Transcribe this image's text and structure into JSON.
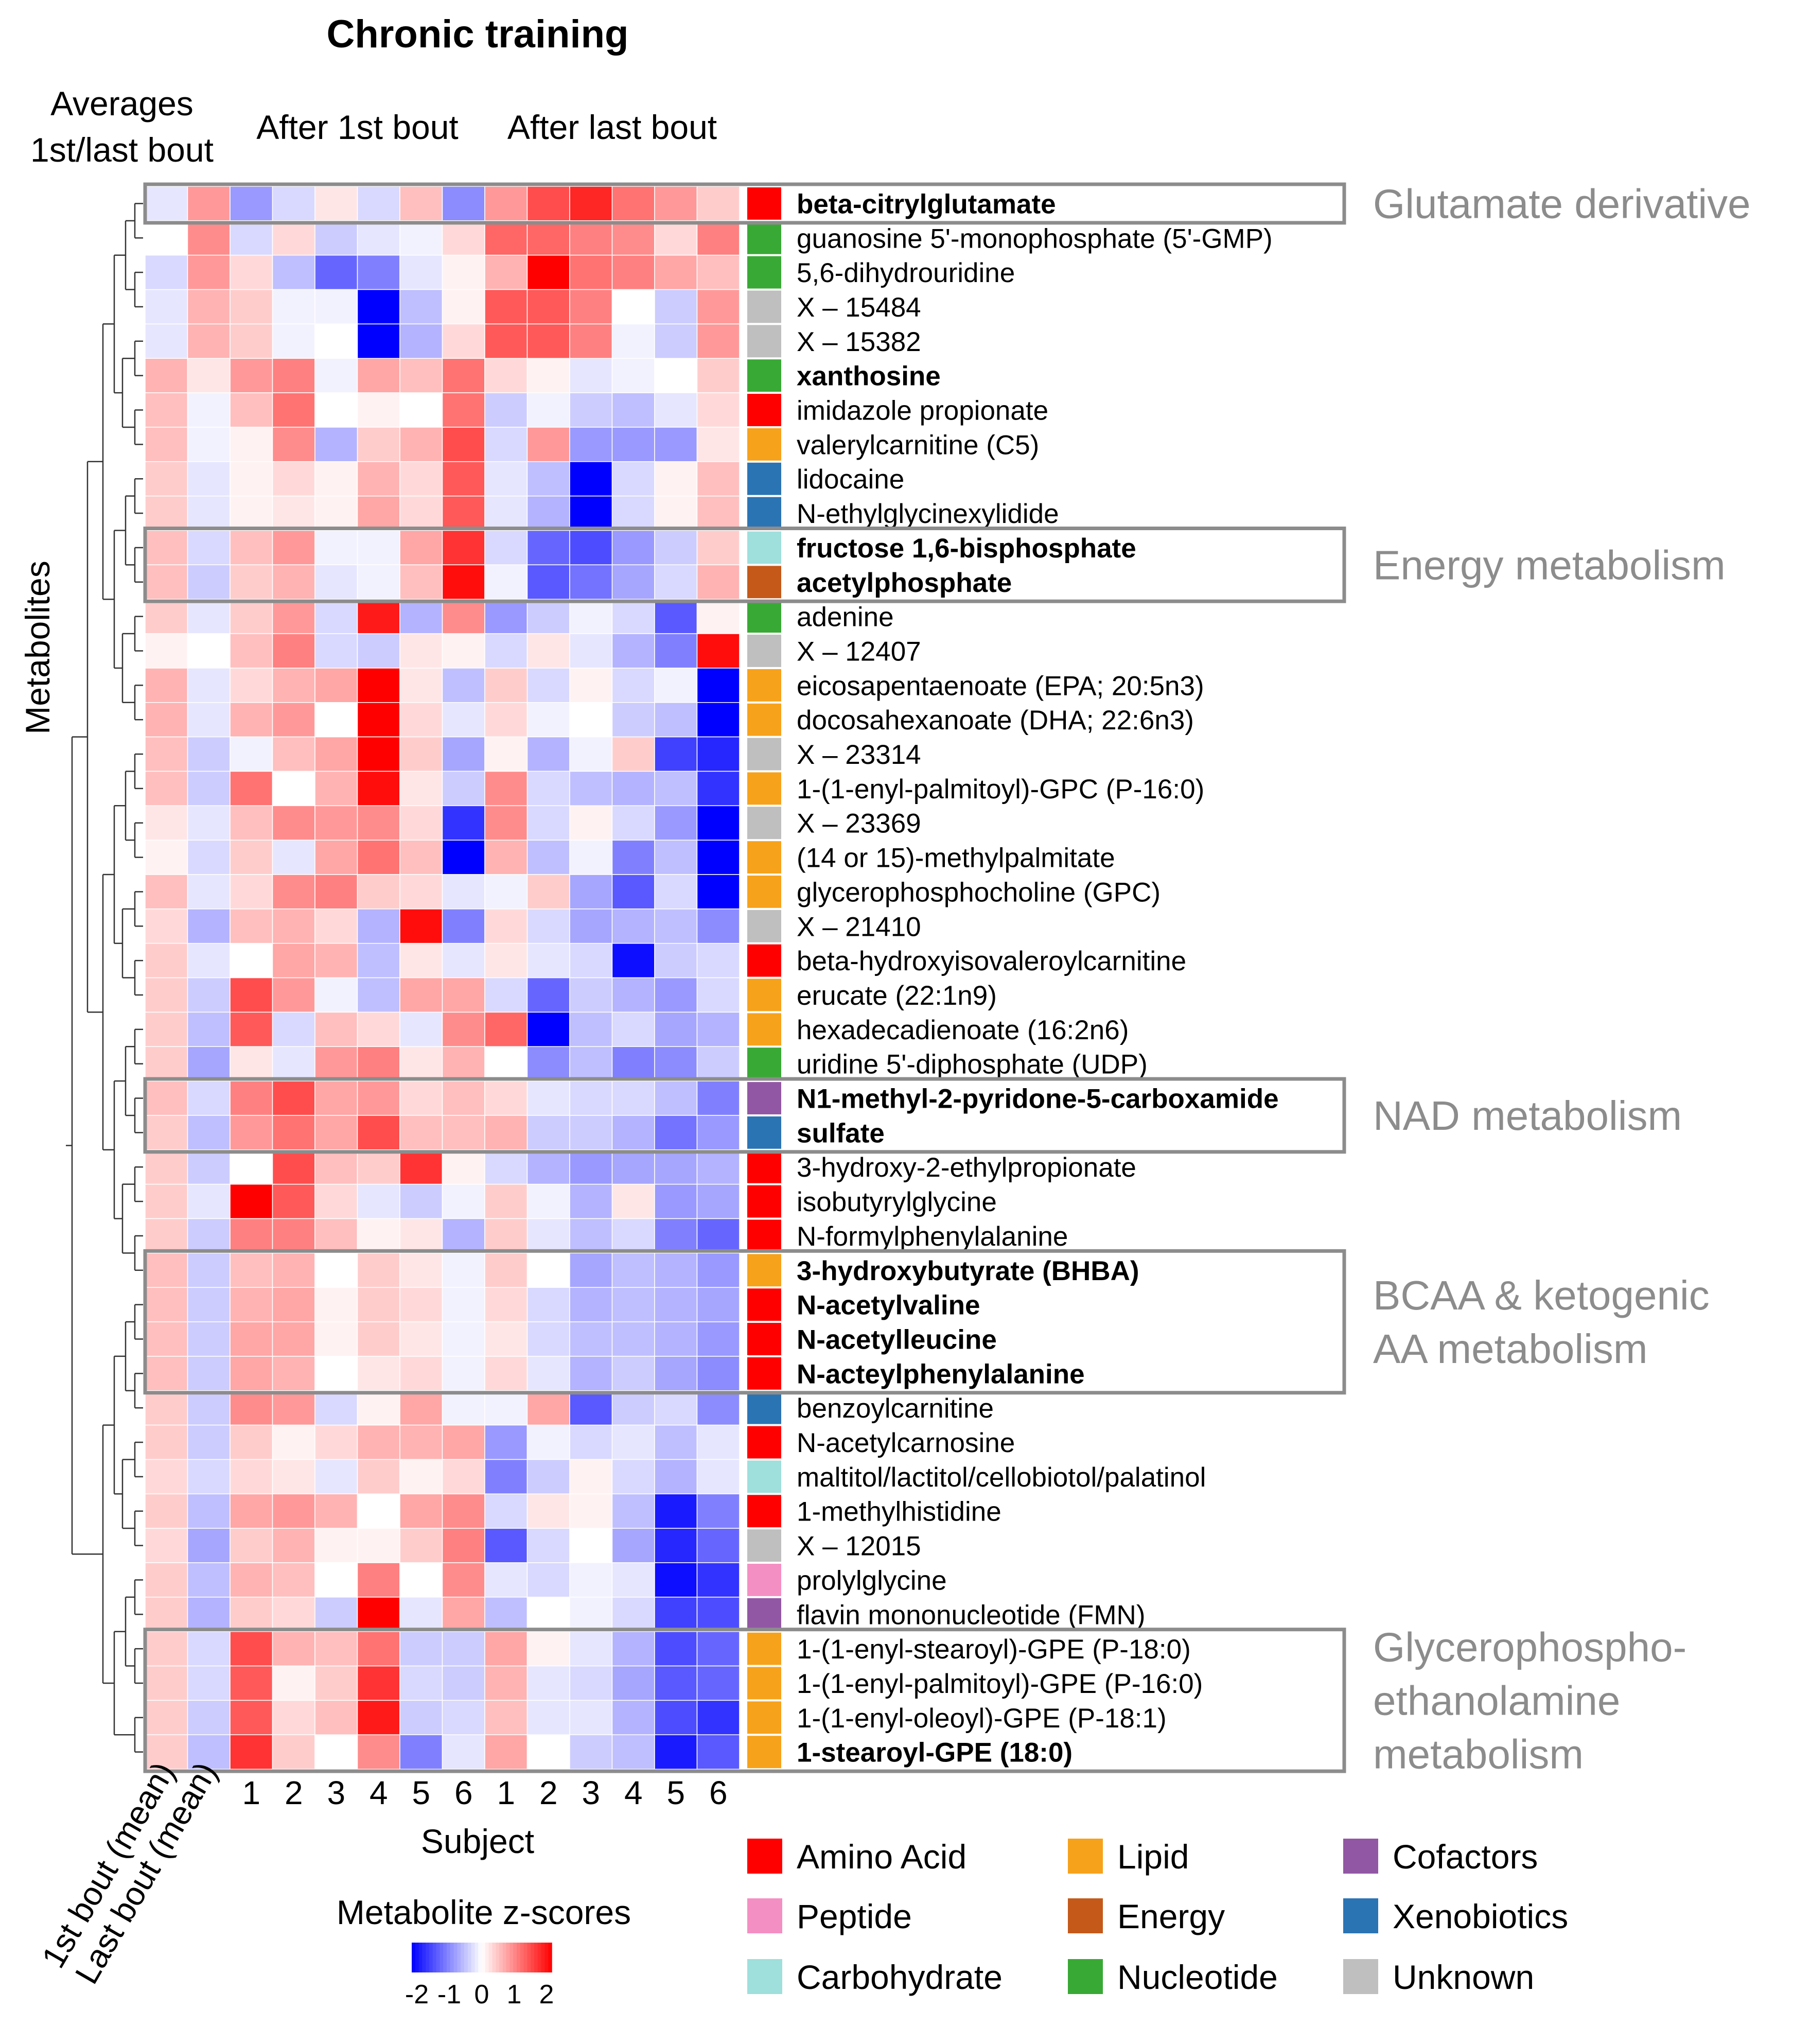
{
  "chart_data": {
    "type": "heatmap",
    "title": "Chronic training",
    "column_groups": [
      "Averages\n1st/last bout",
      "After 1st bout",
      "After last bout"
    ],
    "columns": [
      "1st bout (mean)",
      "Last bout (mean)",
      "1",
      "2",
      "3",
      "4",
      "5",
      "6",
      "1",
      "2",
      "3",
      "4",
      "5",
      "6"
    ],
    "xlabel": "Subject",
    "ylabel": "Metabolites",
    "colorbar": {
      "title": "Metabolite z-scores",
      "ticks": [
        "-2",
        "-1",
        "0",
        "1",
        "2"
      ],
      "range": [
        -2,
        2
      ],
      "low_color": "#0000ff",
      "mid_color": "#ffffff",
      "high_color": "#ff0000"
    },
    "class_colors": {
      "Amino Acid": "#ff0000",
      "Peptide": "#f48fc3",
      "Carbohydrate": "#9fdfdc",
      "Lipid": "#f7a21b",
      "Energy": "#c4591a",
      "Nucleotide": "#39a935",
      "Cofactors": "#9257a4",
      "Xenobiotics": "#2b74b4",
      "Unknown": "#bfbfbf"
    },
    "legend": [
      {
        "label": "Amino Acid",
        "color": "#ff0000"
      },
      {
        "label": "Peptide",
        "color": "#f48fc3"
      },
      {
        "label": "Carbohydrate",
        "color": "#9fdfdc"
      },
      {
        "label": "Lipid",
        "color": "#f7a21b"
      },
      {
        "label": "Energy",
        "color": "#c4591a"
      },
      {
        "label": "Nucleotide",
        "color": "#39a935"
      },
      {
        "label": "Cofactors",
        "color": "#9257a4"
      },
      {
        "label": "Xenobiotics",
        "color": "#2b74b4"
      },
      {
        "label": "Unknown",
        "color": "#bfbfbf"
      }
    ],
    "groups": [
      {
        "label": "Glutamate derivative",
        "rows": [
          0,
          0
        ]
      },
      {
        "label": "Energy metabolism",
        "rows": [
          10,
          11
        ]
      },
      {
        "label": "NAD metabolism",
        "rows": [
          26,
          27
        ]
      },
      {
        "label": "BCAA & ketogenic\nAA metabolism",
        "rows": [
          31,
          34
        ]
      },
      {
        "label": "Glycerophospho-\nethanolamine\nmetabolism",
        "rows": [
          42,
          45
        ]
      }
    ],
    "rows": [
      {
        "name": "beta-citrylglutamate",
        "bold": true,
        "class": "Amino Acid",
        "values": [
          -0.2,
          0.8,
          -0.8,
          -0.3,
          0.2,
          -0.3,
          0.5,
          -0.9,
          0.8,
          1.4,
          1.7,
          1.1,
          0.8,
          0.4
        ]
      },
      {
        "name": "guanosine 5'-monophosphate (5'-GMP)",
        "bold": false,
        "class": "Nucleotide",
        "values": [
          0.0,
          0.9,
          -0.3,
          0.3,
          -0.4,
          -0.2,
          -0.1,
          0.3,
          1.2,
          1.2,
          1.0,
          0.9,
          0.3,
          1.0
        ]
      },
      {
        "name": "5,6-dihydrouridine",
        "bold": false,
        "class": "Nucleotide",
        "values": [
          -0.3,
          0.8,
          0.3,
          -0.5,
          -1.2,
          -1.0,
          -0.2,
          0.1,
          0.6,
          2.0,
          1.1,
          1.0,
          0.7,
          0.5
        ]
      },
      {
        "name": "X – 15484",
        "bold": false,
        "class": "Unknown",
        "values": [
          -0.2,
          0.6,
          0.4,
          -0.1,
          -0.1,
          -2.0,
          -0.5,
          0.1,
          1.3,
          1.3,
          1.0,
          0.0,
          -0.4,
          0.8
        ]
      },
      {
        "name": "X – 15382",
        "bold": false,
        "class": "Unknown",
        "values": [
          -0.2,
          0.6,
          0.4,
          -0.1,
          0.0,
          -2.0,
          -0.6,
          0.3,
          1.3,
          1.3,
          1.0,
          -0.1,
          -0.4,
          0.8
        ]
      },
      {
        "name": "xanthosine",
        "bold": true,
        "class": "Nucleotide",
        "values": [
          0.6,
          0.2,
          0.8,
          1.0,
          -0.1,
          0.7,
          0.5,
          1.1,
          0.3,
          0.1,
          -0.2,
          -0.1,
          0.0,
          0.4
        ]
      },
      {
        "name": "imidazole propionate",
        "bold": false,
        "class": "Amino Acid",
        "values": [
          0.5,
          -0.1,
          0.5,
          1.1,
          0.0,
          0.1,
          0.0,
          1.1,
          -0.4,
          -0.1,
          -0.4,
          -0.5,
          -0.2,
          0.3
        ]
      },
      {
        "name": "valerylcarnitine (C5)",
        "bold": false,
        "class": "Lipid",
        "values": [
          0.5,
          -0.1,
          0.1,
          0.9,
          -0.6,
          0.4,
          0.6,
          1.4,
          -0.3,
          0.8,
          -0.8,
          -0.8,
          -0.8,
          0.2
        ]
      },
      {
        "name": "lidocaine",
        "bold": false,
        "class": "Xenobiotics",
        "values": [
          0.4,
          -0.2,
          0.1,
          0.3,
          0.1,
          0.6,
          0.3,
          1.3,
          -0.2,
          -0.5,
          -2.0,
          -0.3,
          0.1,
          0.5
        ]
      },
      {
        "name": "N-ethylglycinexylidide",
        "bold": false,
        "class": "Xenobiotics",
        "values": [
          0.4,
          -0.2,
          0.1,
          0.2,
          0.1,
          0.7,
          0.3,
          1.3,
          -0.2,
          -0.6,
          -2.0,
          -0.3,
          0.1,
          0.5
        ]
      },
      {
        "name": "fructose 1,6-bisphosphate",
        "bold": true,
        "class": "Carbohydrate",
        "values": [
          0.5,
          -0.3,
          0.5,
          0.8,
          -0.1,
          -0.1,
          0.7,
          1.6,
          -0.3,
          -1.2,
          -1.4,
          -0.8,
          -0.4,
          0.4
        ]
      },
      {
        "name": "acetylphosphate",
        "bold": true,
        "class": "Energy",
        "values": [
          0.5,
          -0.4,
          0.4,
          0.6,
          -0.2,
          -0.1,
          0.5,
          1.9,
          -0.1,
          -1.3,
          -1.1,
          -0.7,
          -0.3,
          0.6
        ]
      },
      {
        "name": "adenine",
        "bold": false,
        "class": "Nucleotide",
        "values": [
          0.4,
          -0.2,
          0.4,
          0.8,
          -0.3,
          1.8,
          -0.6,
          0.9,
          -0.8,
          -0.4,
          -0.1,
          -0.3,
          -1.3,
          0.1
        ]
      },
      {
        "name": "X – 12407",
        "bold": false,
        "class": "Unknown",
        "values": [
          0.1,
          0.0,
          0.5,
          1.0,
          -0.3,
          -0.4,
          0.2,
          0.1,
          -0.3,
          0.2,
          -0.2,
          -0.6,
          -1.0,
          1.9
        ]
      },
      {
        "name": "eicosapentaenoate (EPA; 20:5n3)",
        "bold": false,
        "class": "Lipid",
        "values": [
          0.6,
          -0.2,
          0.3,
          0.6,
          0.7,
          2.0,
          0.2,
          -0.5,
          0.4,
          -0.3,
          0.1,
          -0.3,
          -0.1,
          -2.0
        ]
      },
      {
        "name": "docosahexanoate (DHA; 22:6n3)",
        "bold": false,
        "class": "Lipid",
        "values": [
          0.6,
          -0.2,
          0.6,
          0.8,
          0.0,
          2.0,
          0.3,
          -0.2,
          0.3,
          -0.1,
          0.0,
          -0.4,
          -0.5,
          -2.0
        ]
      },
      {
        "name": "X – 23314",
        "bold": false,
        "class": "Unknown",
        "values": [
          0.5,
          -0.4,
          -0.1,
          0.5,
          0.7,
          2.0,
          0.4,
          -0.7,
          0.1,
          -0.6,
          -0.1,
          0.4,
          -1.5,
          -1.7
        ]
      },
      {
        "name": "1-(1-enyl-palmitoyl)-GPC (P-16:0)",
        "bold": false,
        "class": "Lipid",
        "values": [
          0.5,
          -0.4,
          1.1,
          0.0,
          0.6,
          1.9,
          0.2,
          -0.4,
          0.9,
          -0.3,
          -0.5,
          -0.6,
          -0.5,
          -1.6
        ]
      },
      {
        "name": "X – 23369",
        "bold": false,
        "class": "Unknown",
        "values": [
          0.2,
          -0.2,
          0.5,
          0.9,
          0.8,
          0.9,
          0.3,
          -1.6,
          0.9,
          -0.3,
          0.1,
          -0.3,
          -0.8,
          -2.0
        ]
      },
      {
        "name": "(14 or 15)-methylpalmitate",
        "bold": false,
        "class": "Lipid",
        "values": [
          0.1,
          -0.3,
          0.4,
          -0.2,
          0.7,
          1.1,
          0.5,
          -2.0,
          0.6,
          -0.5,
          -0.1,
          -1.0,
          -0.5,
          -2.0
        ]
      },
      {
        "name": "glycerophosphocholine (GPC)",
        "bold": false,
        "class": "Lipid",
        "values": [
          0.5,
          -0.2,
          0.3,
          0.9,
          1.0,
          0.4,
          0.3,
          -0.2,
          -0.1,
          0.4,
          -0.7,
          -1.3,
          -0.3,
          -2.0
        ]
      },
      {
        "name": "X – 21410",
        "bold": false,
        "class": "Unknown",
        "values": [
          0.3,
          -0.6,
          0.5,
          0.6,
          0.3,
          -0.6,
          1.9,
          -1.0,
          0.3,
          -0.3,
          -0.7,
          -0.6,
          -0.5,
          -0.9
        ]
      },
      {
        "name": "beta-hydroxyisovaleroylcarnitine",
        "bold": false,
        "class": "Amino Acid",
        "values": [
          0.4,
          -0.2,
          0.0,
          0.7,
          0.6,
          -0.5,
          0.2,
          -0.2,
          0.2,
          -0.2,
          -0.3,
          -1.9,
          -0.4,
          -0.3
        ]
      },
      {
        "name": "erucate (22:1n9)",
        "bold": false,
        "class": "Lipid",
        "values": [
          0.4,
          -0.4,
          1.4,
          0.8,
          -0.1,
          -0.5,
          0.7,
          0.7,
          -0.3,
          -1.2,
          -0.4,
          -0.6,
          -0.8,
          -0.3
        ]
      },
      {
        "name": "hexadecadienoate (16:2n6)",
        "bold": false,
        "class": "Lipid",
        "values": [
          0.4,
          -0.5,
          1.3,
          -0.3,
          0.5,
          0.3,
          -0.2,
          0.9,
          1.2,
          -2.0,
          -0.5,
          -0.3,
          -0.7,
          -0.6
        ]
      },
      {
        "name": "uridine 5'-diphosphate (UDP)",
        "bold": false,
        "class": "Nucleotide",
        "values": [
          0.4,
          -0.7,
          0.2,
          -0.2,
          0.8,
          1.0,
          0.2,
          0.6,
          0.0,
          -0.9,
          -0.5,
          -1.0,
          -0.9,
          -0.4
        ]
      },
      {
        "name": "N1-methyl-2-pyridone-5-carboxamide",
        "bold": true,
        "class": "Cofactors",
        "values": [
          0.5,
          -0.3,
          1.0,
          1.4,
          0.7,
          0.8,
          0.3,
          0.5,
          0.3,
          -0.2,
          -0.3,
          -0.3,
          -0.5,
          -1.0
        ]
      },
      {
        "name": "sulfate",
        "bold": true,
        "class": "Xenobiotics",
        "values": [
          0.4,
          -0.5,
          0.8,
          1.1,
          0.7,
          1.4,
          0.5,
          0.5,
          0.6,
          -0.4,
          -0.4,
          -0.6,
          -1.1,
          -0.8
        ]
      },
      {
        "name": "3-hydroxy-2-ethylpropionate",
        "bold": false,
        "class": "Amino Acid",
        "values": [
          0.4,
          -0.4,
          0.0,
          1.4,
          0.5,
          0.4,
          1.6,
          0.1,
          -0.3,
          -0.6,
          -0.8,
          -0.7,
          -0.7,
          -0.6
        ]
      },
      {
        "name": "isobutyrylglycine",
        "bold": false,
        "class": "Amino Acid",
        "values": [
          0.4,
          -0.2,
          2.0,
          1.3,
          0.3,
          -0.2,
          -0.4,
          -0.1,
          0.4,
          -0.1,
          -0.6,
          0.2,
          -0.8,
          -0.7
        ]
      },
      {
        "name": "N-formylphenylalanine",
        "bold": false,
        "class": "Amino Acid",
        "values": [
          0.4,
          -0.4,
          1.0,
          1.0,
          0.5,
          0.1,
          0.2,
          -0.6,
          0.4,
          -0.2,
          -0.5,
          -0.3,
          -1.0,
          -1.2
        ]
      },
      {
        "name": "3-hydroxybutyrate (BHBA)",
        "bold": true,
        "class": "Lipid",
        "values": [
          0.5,
          -0.4,
          0.5,
          0.6,
          0.0,
          0.4,
          0.2,
          -0.1,
          0.4,
          0.0,
          -0.7,
          -0.5,
          -0.6,
          -0.8
        ]
      },
      {
        "name": "N-acetylvaline",
        "bold": true,
        "class": "Amino Acid",
        "values": [
          0.5,
          -0.4,
          0.6,
          0.7,
          0.1,
          0.4,
          0.3,
          -0.1,
          0.3,
          -0.3,
          -0.6,
          -0.5,
          -0.6,
          -0.7
        ]
      },
      {
        "name": "N-acetylleucine",
        "bold": true,
        "class": "Amino Acid",
        "values": [
          0.5,
          -0.4,
          0.7,
          0.7,
          0.1,
          0.4,
          0.2,
          -0.1,
          0.2,
          -0.3,
          -0.5,
          -0.5,
          -0.6,
          -0.8
        ]
      },
      {
        "name": "N-acteylphenylalanine",
        "bold": true,
        "class": "Amino Acid",
        "values": [
          0.5,
          -0.4,
          0.7,
          0.6,
          0.0,
          0.2,
          0.3,
          -0.1,
          0.3,
          -0.2,
          -0.6,
          -0.4,
          -0.7,
          -0.9
        ]
      },
      {
        "name": "benzoylcarnitine",
        "bold": false,
        "class": "Xenobiotics",
        "values": [
          0.4,
          -0.4,
          0.9,
          0.8,
          -0.3,
          0.1,
          0.7,
          -0.1,
          -0.1,
          0.7,
          -1.3,
          -0.4,
          -0.3,
          -0.9
        ]
      },
      {
        "name": "N-acetylcarnosine",
        "bold": false,
        "class": "Amino Acid",
        "values": [
          0.4,
          -0.4,
          0.4,
          0.1,
          0.3,
          0.6,
          0.6,
          0.7,
          -0.8,
          -0.1,
          -0.3,
          -0.2,
          -0.5,
          -0.2
        ]
      },
      {
        "name": "maltitol/lactitol/cellobiotol/palatinol",
        "bold": false,
        "class": "Carbohydrate",
        "values": [
          0.3,
          -0.3,
          0.3,
          0.2,
          -0.2,
          0.4,
          0.1,
          0.3,
          -1.0,
          -0.4,
          0.1,
          -0.3,
          -0.6,
          -0.2
        ]
      },
      {
        "name": "1-methylhistidine",
        "bold": false,
        "class": "Amino Acid",
        "values": [
          0.4,
          -0.5,
          0.7,
          0.8,
          0.6,
          0.0,
          0.7,
          0.9,
          -0.3,
          0.2,
          0.1,
          -0.5,
          -1.8,
          -1.0
        ]
      },
      {
        "name": "X – 12015",
        "bold": false,
        "class": "Unknown",
        "values": [
          0.3,
          -0.7,
          0.4,
          0.6,
          0.1,
          0.1,
          0.4,
          1.0,
          -1.3,
          -0.3,
          0.0,
          -0.7,
          -1.7,
          -1.2
        ]
      },
      {
        "name": "prolylglycine",
        "bold": false,
        "class": "Peptide",
        "values": [
          0.4,
          -0.5,
          0.6,
          0.5,
          0.0,
          1.0,
          0.0,
          0.9,
          -0.2,
          -0.3,
          -0.1,
          -0.2,
          -1.9,
          -1.6
        ]
      },
      {
        "name": "flavin mononucleotide (FMN)",
        "bold": false,
        "class": "Cofactors",
        "values": [
          0.4,
          -0.6,
          0.4,
          0.3,
          -0.4,
          2.0,
          -0.2,
          0.7,
          -0.5,
          0.0,
          -0.1,
          -0.3,
          -1.5,
          -1.4
        ]
      },
      {
        "name": "1-(1-enyl-stearoyl)-GPE (P-18:0)",
        "bold": false,
        "class": "Lipid",
        "values": [
          0.4,
          -0.3,
          1.4,
          0.6,
          0.5,
          1.1,
          -0.4,
          -0.4,
          0.7,
          0.1,
          -0.2,
          -0.6,
          -1.4,
          -1.2
        ]
      },
      {
        "name": "1-(1-enyl-palmitoyl)-GPE (P-16:0)",
        "bold": false,
        "class": "Lipid",
        "values": [
          0.4,
          -0.3,
          1.3,
          0.1,
          0.4,
          1.6,
          -0.3,
          -0.4,
          0.6,
          -0.2,
          -0.3,
          -0.7,
          -1.3,
          -1.2
        ]
      },
      {
        "name": "1-(1-enyl-oleoyl)-GPE (P-18:1)",
        "bold": false,
        "class": "Lipid",
        "values": [
          0.4,
          -0.4,
          1.3,
          0.3,
          0.5,
          1.8,
          -0.4,
          -0.3,
          0.5,
          -0.2,
          -0.2,
          -0.6,
          -1.4,
          -1.6
        ]
      },
      {
        "name": "1-stearoyl-GPE (18:0)",
        "bold": true,
        "class": "Lipid",
        "values": [
          0.4,
          -0.5,
          1.6,
          0.4,
          0.0,
          0.9,
          -1.0,
          -0.2,
          0.7,
          0.0,
          -0.4,
          -0.5,
          -1.8,
          -1.3
        ]
      }
    ]
  }
}
